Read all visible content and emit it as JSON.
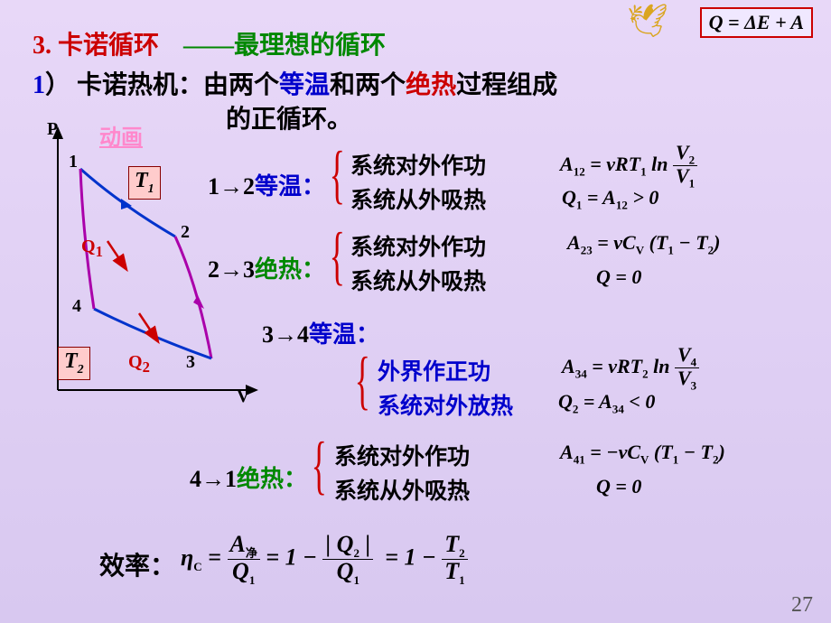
{
  "top_formula_html": "<i>Q</i> = Δ<i>E</i> + <i>A</i>",
  "bird_glyph": "🕊",
  "heading": {
    "num": "3.",
    "title": "卡诺循环",
    "dash": "——",
    "sub": "最理想的循环"
  },
  "intro": {
    "num": "1",
    "paren": "）",
    "a": "卡诺热机：由两个",
    "iso": "等温",
    "b": "和两个",
    "adiab": "绝热",
    "c": "过程组成",
    "d": "的正循环。"
  },
  "anim_label": "动画",
  "diagram": {
    "P": "P",
    "V": "V",
    "p1": "1",
    "p2": "2",
    "p3": "3",
    "p4": "4",
    "T1": "T<sub>1</sub>",
    "T2": "T<sub>2</sub>",
    "Q1": "Q<sub>1</sub>",
    "Q2": "Q<sub>2</sub>",
    "curve_color_iso": "#0033cc",
    "curve_color_adiab": "#aa00aa",
    "arrow_color": "#cc0000"
  },
  "processes": {
    "p12": {
      "arrow": "1→2",
      "type": "等温",
      "colon": "：",
      "work": "系统对外作功",
      "heat": "系统从外吸热",
      "f_work": "<i>A</i><sub>12</sub> = <i>νRT</i><sub>1</sub> ln <span class='frac'><span class='num'><i>V</i><sub>2</sub></span><span class='den'><i>V</i><sub>1</sub></span></span>",
      "f_heat": "<i>Q</i><sub>1</sub> = <i>A</i><sub>12</sub> &gt; 0"
    },
    "p23": {
      "arrow": "2→3",
      "type": "绝热",
      "colon": "：",
      "work": "系统对外作功",
      "heat": "系统从外吸热",
      "f_work": "<i>A</i><sub>23</sub> = <i>νC<sub>V</sub></i> (<i>T</i><sub>1</sub> − <i>T</i><sub>2</sub>)",
      "f_heat": "<i>Q</i> = 0"
    },
    "p34": {
      "arrow": "3→4",
      "type": "等温",
      "colon": "：",
      "work": "外界作正功",
      "heat": "系统对外放热",
      "f_work": "<i>A</i><sub>34</sub> = <i>νRT</i><sub>2</sub> ln <span class='frac'><span class='num'><i>V</i><sub>4</sub></span><span class='den'><i>V</i><sub>3</sub></span></span>",
      "f_heat": "<i>Q</i><sub>2</sub> = <i>A</i><sub>34</sub> &lt; 0"
    },
    "p41": {
      "arrow": "4→1",
      "type": "绝热",
      "colon": "：",
      "work": "系统对外作功",
      "heat": "系统从外吸热",
      "f_work": "<i>A</i><sub>41</sub> = −<i>νC<sub>V</sub></i> (<i>T</i><sub>1</sub> − <i>T</i><sub>2</sub>)",
      "f_heat": "<i>Q</i> = 0"
    }
  },
  "efficiency": {
    "label": "效率：",
    "formula": "<i>η<sub>C</sub></i> = <span class='frac'><span class='num'><i>A</i><sub>净</sub></span><span class='den'><i>Q</i><sub>1</sub></span></span> = 1 − <span class='frac'><span class='num'>| <i>Q</i><sub>2</sub> |</span><span class='den'><i>Q</i><sub>1</sub></span></span> &nbsp;= 1 − <span class='frac'><span class='num'><i>T</i><sub>2</sub></span><span class='den'><i>T</i><sub>1</sub></span></span>"
  },
  "page": "27"
}
